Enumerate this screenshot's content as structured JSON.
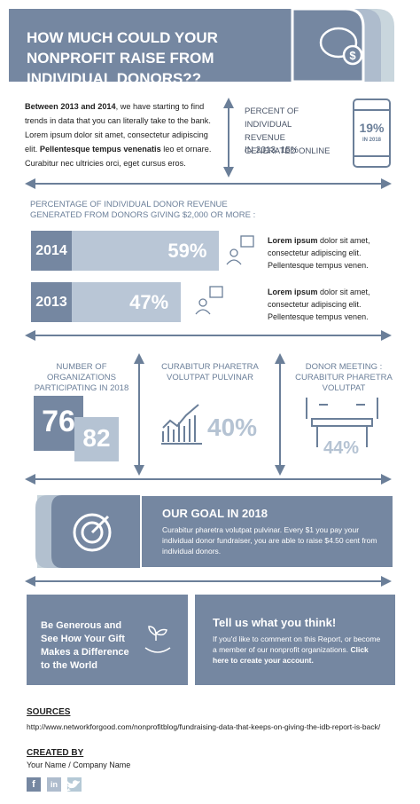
{
  "header": {
    "title": "HOW MUCH COULD YOUR NONPROFIT RAISE FROM INDIVIDUAL DONORS??"
  },
  "intro": {
    "parts": [
      {
        "text": "Between 2013 and 2014",
        "bold": true
      },
      {
        "text": ", we have starting to find trends in data that you can literally take to the bank. Lorem ipsum dolor sit amet, consectetur adipiscing elit. "
      },
      {
        "text": "Pellentesque tempus venenatis",
        "bold": true
      },
      {
        "text": " leo et ornare. Curabitur nec ultricies orci, eget cursus eros."
      }
    ]
  },
  "online": {
    "label": "PERCENT OF INDIVIDUAL REVENUE GENERATED ONLINE",
    "past": "IN 2013: 15%",
    "value": "19%",
    "year": "IN 2018"
  },
  "bars": {
    "title": "PERCENTAGE OF INDIVIDUAL DONOR REVENUE GENERATED FROM DONORS GIVING $2,000 OR MORE :",
    "items": [
      {
        "year": "2014",
        "value": 59,
        "value_label": "59%",
        "desc_bold": "Lorem ipsum",
        "desc": " dolor sit amet, consectetur adipiscing elit. Pellentesque tempus venen."
      },
      {
        "year": "2013",
        "value": 47,
        "value_label": "47%",
        "desc_bold": "Lorem ipsum",
        "desc": " dolor sit amet, consectetur adipiscing elit. Pellentesque tempus venen."
      }
    ]
  },
  "columns": [
    {
      "title": "NUMBER OF ORGANIZATIONS PARTICIPATING IN 2018",
      "a": "76",
      "b": "82"
    },
    {
      "title": "CURABITUR PHARETRA VOLUTPAT PULVINAR",
      "value": "40%"
    },
    {
      "title": "DONOR MEETING : CURABITUR PHARETRA VOLUTPAT",
      "value": "44%"
    }
  ],
  "goal": {
    "title": "OUR GOAL IN 2018",
    "text": "Curabitur pharetra volutpat pulvinar. Every $1 you pay your individual donor fundraiser, you are able to raise $4.50 cent from individual donors."
  },
  "generous": {
    "text": "Be Generous and See How Your Gift Makes a Difference to the World"
  },
  "feedback": {
    "title": "Tell us what you think!",
    "text": "If you'd like to comment on this Report, or become a member of our nonprofit organizations. ",
    "link": "Click here to create your account."
  },
  "footer": {
    "sources_title": "SOURCES",
    "source": "http://www.networkforgood.com/nonprofitblog/fundraising-data-that-keeps-on-giving-the-idb-report-is-back/",
    "created_title": "CREATED BY",
    "created": "Your Name / Company Name",
    "social": [
      "f",
      "in"
    ]
  }
}
